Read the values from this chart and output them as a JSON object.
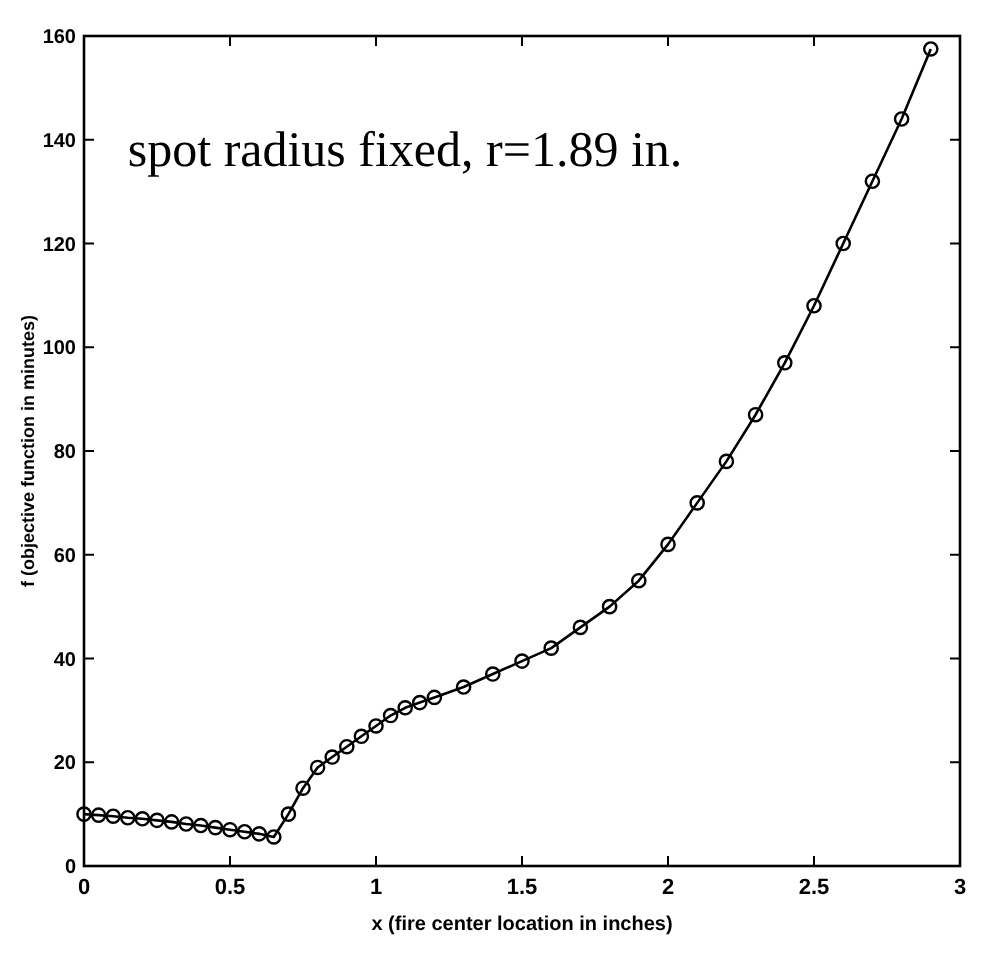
{
  "chart_data": {
    "type": "line",
    "xlabel": "x (fire center location in inches)",
    "ylabel": "f (objective function in minutes)",
    "annotations": [
      "spot radius fixed, r=1.89 in."
    ],
    "x": [
      0,
      0.05,
      0.1,
      0.15,
      0.2,
      0.25,
      0.3,
      0.35,
      0.4,
      0.45,
      0.5,
      0.55,
      0.6,
      0.65,
      0.7,
      0.75,
      0.8,
      0.85,
      0.9,
      0.95,
      1.0,
      1.05,
      1.1,
      1.15,
      1.2,
      1.3,
      1.4,
      1.5,
      1.6,
      1.7,
      1.8,
      1.9,
      2.0,
      2.1,
      2.2,
      2.3,
      2.4,
      2.5,
      2.6,
      2.7,
      2.8,
      2.9
    ],
    "series": [
      {
        "color": "#000000",
        "values": [
          10,
          9.8,
          9.6,
          9.3,
          9.1,
          8.8,
          8.5,
          8.1,
          7.8,
          7.4,
          7,
          6.6,
          6.2,
          5.6,
          10,
          15,
          19,
          21,
          23,
          25,
          27,
          29,
          30.5,
          31.5,
          32.5,
          34.5,
          37,
          39.5,
          42,
          46,
          50,
          55,
          62,
          70,
          78,
          87,
          97,
          108,
          120,
          132,
          144,
          157.5
        ]
      }
    ],
    "xlim": [
      0,
      3
    ],
    "ylim": [
      0,
      160
    ],
    "xticks": [
      0,
      0.5,
      1,
      1.5,
      2,
      2.5,
      3
    ],
    "yticks": [
      0,
      20,
      40,
      60,
      80,
      100,
      120,
      140,
      160
    ],
    "grid": false,
    "marker": "circle",
    "line_style": "solid"
  }
}
